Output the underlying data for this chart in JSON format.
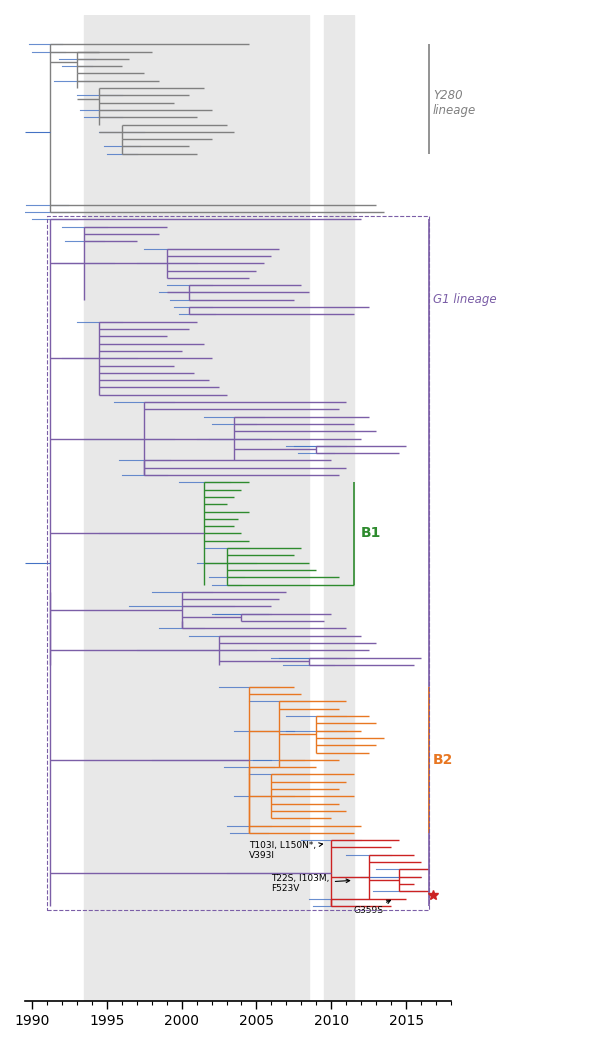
{
  "xlim": [
    1989.5,
    2018.0
  ],
  "ylim": [
    -3,
    132
  ],
  "x_ticks": [
    1990,
    1995,
    2000,
    2005,
    2010,
    2015
  ],
  "stripe1": [
    1993.5,
    2008.5
  ],
  "stripe2": [
    2009.5,
    2011.5
  ],
  "gray": "#808080",
  "purple": "#7B5EA7",
  "green": "#2E8B2E",
  "orange": "#E87722",
  "red": "#CC2222",
  "blue": "#4472C4",
  "bg_stripe": "#e8e8e8",
  "fig_bg": "#ffffff"
}
